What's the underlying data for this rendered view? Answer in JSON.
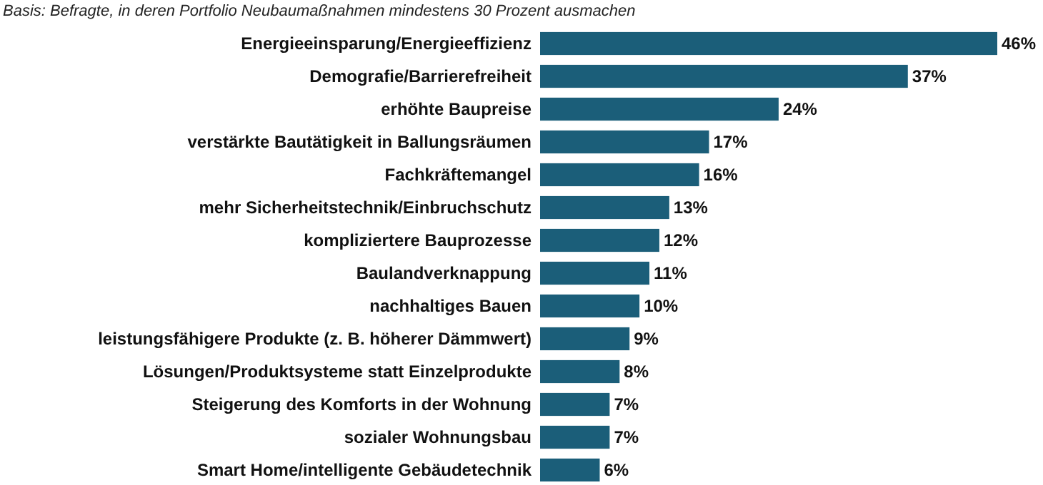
{
  "chart_data": {
    "type": "bar",
    "orientation": "horizontal",
    "subtitle": "Basis: Befragte, in deren Portfolio Neubaumaßnahmen mindestens 30 Prozent ausmachen",
    "categories": [
      "Energieeinsparung/Energieeffizienz",
      "Demografie/Barrierefreiheit",
      "erhöhte Baupreise",
      "verstärkte Bautätigkeit in Ballungsräumen",
      "Fachkräftemangel",
      "mehr Sicherheitstechnik/Einbruchschutz",
      "kompliziertere Bauprozesse",
      "Baulandverknappung",
      "nachhaltiges Bauen",
      "leistungsfähigere Produkte (z. B. höherer Dämmwert)",
      "Lösungen/Produktsysteme statt Einzelprodukte",
      "Steigerung des Komforts in der Wohnung",
      "sozialer Wohnungsbau",
      "Smart Home/intelligente Gebäudetechnik"
    ],
    "values": [
      46,
      37,
      24,
      17,
      16,
      13,
      12,
      11,
      10,
      9,
      8,
      7,
      7,
      6
    ],
    "value_labels": [
      "46%",
      "37%",
      "24%",
      "17%",
      "16%",
      "13%",
      "12%",
      "11%",
      "10%",
      "9%",
      "8%",
      "7%",
      "7%",
      "6%"
    ],
    "color": "#1b5e79"
  }
}
